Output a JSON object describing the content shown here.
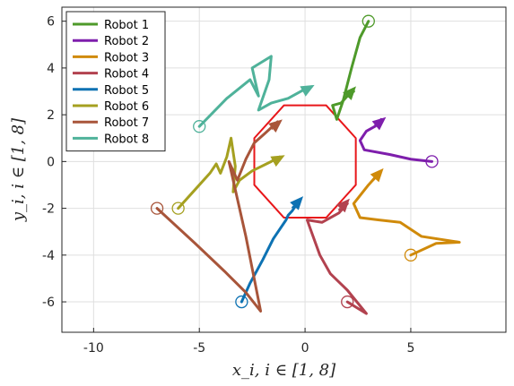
{
  "chart_data": {
    "type": "line",
    "title": "",
    "xlabel": "x_i,    i ∈ [1, 8]",
    "ylabel": "y_i,    i ∈ [1, 8]",
    "xlim": [
      -11.5,
      9.5
    ],
    "ylim": [
      -7.3,
      6.6
    ],
    "xticks": [
      -10,
      -5,
      0,
      5
    ],
    "yticks": [
      -6,
      -4,
      -2,
      0,
      2,
      4,
      6
    ],
    "xtick_labels": [
      "-10",
      "-5",
      "0",
      "5"
    ],
    "ytick_labels": [
      "-6",
      "-4",
      "-2",
      "0",
      "2",
      "4",
      "6"
    ],
    "grid": true,
    "legend_position": "top-left",
    "series": [
      {
        "name": "Robot 1",
        "color": "#4e9a2a",
        "start": [
          3,
          6
        ],
        "path": [
          [
            3,
            6
          ],
          [
            2.6,
            5.3
          ],
          [
            2.2,
            4.0
          ],
          [
            2.0,
            3.3
          ],
          [
            1.8,
            2.6
          ],
          [
            1.5,
            1.8
          ],
          [
            1.3,
            2.4
          ],
          [
            1.7,
            2.5
          ],
          [
            2.0,
            2.8
          ],
          [
            2.3,
            3.0
          ]
        ],
        "arrow": [
          [
            2.0,
            2.8
          ],
          [
            2.3,
            3.1
          ]
        ]
      },
      {
        "name": "Robot 2",
        "color": "#7e1eac",
        "start": [
          6,
          0
        ],
        "path": [
          [
            6,
            0
          ],
          [
            5.0,
            0.1
          ],
          [
            4.0,
            0.3
          ],
          [
            2.8,
            0.5
          ],
          [
            2.6,
            0.9
          ],
          [
            2.9,
            1.3
          ],
          [
            3.3,
            1.5
          ],
          [
            3.6,
            1.8
          ]
        ],
        "arrow": [
          [
            3.3,
            1.5
          ],
          [
            3.7,
            1.8
          ]
        ]
      },
      {
        "name": "Robot 3",
        "color": "#d08a0a",
        "start": [
          5,
          -4
        ],
        "path": [
          [
            5,
            -4
          ],
          [
            6.2,
            -3.5
          ],
          [
            7.3,
            -3.45
          ],
          [
            5.5,
            -3.2
          ],
          [
            4.5,
            -2.6
          ],
          [
            3.5,
            -2.5
          ],
          [
            2.6,
            -2.4
          ],
          [
            2.3,
            -1.8
          ],
          [
            3.0,
            -1.0
          ],
          [
            3.5,
            -0.5
          ]
        ],
        "arrow": [
          [
            3.2,
            -0.8
          ],
          [
            3.6,
            -0.4
          ]
        ]
      },
      {
        "name": "Robot 4",
        "color": "#b2424f",
        "start": [
          2,
          -6
        ],
        "path": [
          [
            2,
            -6
          ],
          [
            2.9,
            -6.5
          ],
          [
            2.0,
            -5.5
          ],
          [
            1.2,
            -4.8
          ],
          [
            0.7,
            -4.0
          ],
          [
            0.3,
            -3.0
          ],
          [
            0.1,
            -2.5
          ],
          [
            0.8,
            -2.6
          ],
          [
            1.6,
            -2.2
          ],
          [
            2.0,
            -1.8
          ]
        ],
        "arrow": [
          [
            1.6,
            -2.1
          ],
          [
            2.0,
            -1.7
          ]
        ]
      },
      {
        "name": "Robot 5",
        "color": "#0d72b3",
        "start": [
          -3,
          -6
        ],
        "path": [
          [
            -3,
            -6
          ],
          [
            -2.6,
            -5.2
          ],
          [
            -2.0,
            -4.2
          ],
          [
            -1.5,
            -3.3
          ],
          [
            -0.9,
            -2.5
          ],
          [
            -0.8,
            -2.3
          ],
          [
            -0.6,
            -2.1
          ],
          [
            -0.3,
            -1.7
          ]
        ],
        "arrow": [
          [
            -0.6,
            -2.0
          ],
          [
            -0.2,
            -1.6
          ]
        ]
      },
      {
        "name": "Robot 6",
        "color": "#a5a020",
        "start": [
          -6,
          -2
        ],
        "path": [
          [
            -6,
            -2
          ],
          [
            -5.3,
            -1.3
          ],
          [
            -4.5,
            -0.5
          ],
          [
            -4.2,
            -0.1
          ],
          [
            -4.0,
            -0.5
          ],
          [
            -3.7,
            0.2
          ],
          [
            -3.5,
            1.0
          ],
          [
            -3.3,
            -0.2
          ],
          [
            -3.4,
            -1.3
          ],
          [
            -3.1,
            -0.8
          ],
          [
            -2.5,
            -0.4
          ],
          [
            -1.6,
            0.0
          ],
          [
            -1.2,
            0.2
          ]
        ],
        "arrow": [
          [
            -1.5,
            0.0
          ],
          [
            -1.1,
            0.2
          ]
        ]
      },
      {
        "name": "Robot 7",
        "color": "#a8553a",
        "start": [
          -7,
          -2
        ],
        "path": [
          [
            -7,
            -2
          ],
          [
            -5.2,
            -3.5
          ],
          [
            -3.8,
            -4.7
          ],
          [
            -2.8,
            -5.6
          ],
          [
            -2.1,
            -6.4
          ],
          [
            -2.8,
            -3.2
          ],
          [
            -3.6,
            0.0
          ],
          [
            -3.2,
            -0.8
          ],
          [
            -2.8,
            0.1
          ],
          [
            -2.4,
            0.8
          ],
          [
            -1.9,
            1.2
          ],
          [
            -1.3,
            1.7
          ]
        ],
        "arrow": [
          [
            -1.6,
            1.4
          ],
          [
            -1.2,
            1.7
          ]
        ]
      },
      {
        "name": "Robot 8",
        "color": "#4fb29a",
        "start": [
          -5,
          1.5
        ],
        "path": [
          [
            -5,
            1.5
          ],
          [
            -3.7,
            2.7
          ],
          [
            -2.6,
            3.5
          ],
          [
            -2.2,
            2.8
          ],
          [
            -2.5,
            4.0
          ],
          [
            -1.6,
            4.5
          ],
          [
            -1.7,
            3.5
          ],
          [
            -2.2,
            2.2
          ],
          [
            -1.6,
            2.5
          ],
          [
            -0.8,
            2.7
          ],
          [
            0.0,
            3.1
          ],
          [
            0.3,
            3.2
          ]
        ],
        "arrow": [
          [
            -0.1,
            3.0
          ],
          [
            0.3,
            3.2
          ]
        ]
      }
    ],
    "formation_octagon": {
      "color": "#e8161a",
      "vertices": [
        [
          -1.0,
          2.4
        ],
        [
          1.0,
          2.4
        ],
        [
          2.4,
          1.0
        ],
        [
          2.4,
          -1.0
        ],
        [
          1.0,
          -2.4
        ],
        [
          -1.0,
          -2.4
        ],
        [
          -2.4,
          -1.0
        ],
        [
          -2.4,
          1.0
        ]
      ]
    }
  }
}
